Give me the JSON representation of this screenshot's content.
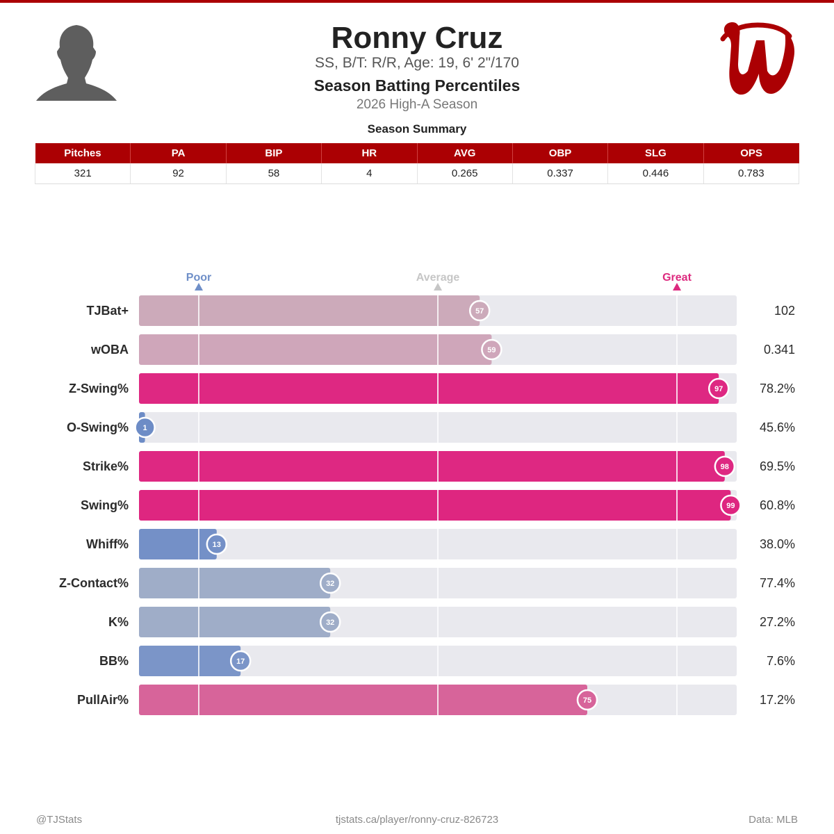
{
  "header": {
    "player_name": "Ronny Cruz",
    "bio": "SS, B/T: R/R, Age: 19, 6' 2\"/170",
    "subtitle": "Season Batting Percentiles",
    "season": "2026 High-A Season"
  },
  "summary": {
    "title": "Season Summary",
    "columns": [
      "Pitches",
      "PA",
      "BIP",
      "HR",
      "AVG",
      "OBP",
      "SLG",
      "OPS"
    ],
    "values": [
      "321",
      "92",
      "58",
      "4",
      "0.265",
      "0.337",
      "0.446",
      "0.783"
    ]
  },
  "chart_data": {
    "type": "bar",
    "orientation": "horizontal",
    "xlim": [
      0,
      100
    ],
    "reference_marks": [
      {
        "label": "Poor",
        "value": 10,
        "color": "#6f8fc8"
      },
      {
        "label": "Average",
        "value": 50,
        "color": "#c6c6c6"
      },
      {
        "label": "Great",
        "value": 90,
        "color": "#dd2a7f"
      }
    ],
    "categories": [
      "TJBat+",
      "wOBA",
      "Z-Swing%",
      "O-Swing%",
      "Strike%",
      "Swing%",
      "Whiff%",
      "Z-Contact%",
      "K%",
      "BB%",
      "PullAir%"
    ],
    "percentiles": [
      57,
      59,
      97,
      1,
      98,
      99,
      13,
      32,
      32,
      17,
      75
    ],
    "stat_values": [
      "102",
      "0.341",
      "78.2%",
      "45.6%",
      "69.5%",
      "60.8%",
      "38.0%",
      "77.4%",
      "27.2%",
      "7.6%",
      "17.2%"
    ],
    "bar_colors": [
      "#ccaaba",
      "#cfa6ba",
      "#de2882",
      "#6d8cc6",
      "#de2882",
      "#de2680",
      "#7490c7",
      "#9fadc8",
      "#9fadc8",
      "#7b95c8",
      "#d7649a"
    ],
    "track_color": "#e9e9ee"
  },
  "footer": {
    "left": "@TJStats",
    "center": "tjstats.ca/player/ronny-cruz-826723",
    "right": "Data: MLB"
  },
  "colors": {
    "brand_red": "#ab0003",
    "poor": "#6f8fc8",
    "great": "#dd2a7f"
  },
  "icons": {
    "headshot": "player-silhouette-icon",
    "logo": "nationals-w-logo"
  }
}
